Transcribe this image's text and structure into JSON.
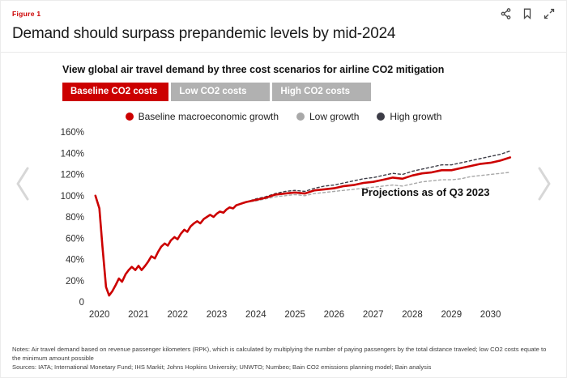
{
  "header": {
    "figure_label": "Figure 1",
    "title": "Demand should surpass prepandemic levels by mid-2024"
  },
  "theme": {
    "accent": "#cc0000",
    "inactive_tab": "#b1b1b1",
    "low_line": "#a8a8a8",
    "high_line": "#3c3c46"
  },
  "tabs": [
    {
      "label": "Baseline CO2 costs",
      "active": true
    },
    {
      "label": "Low CO2 costs",
      "active": false
    },
    {
      "label": "High CO2 costs",
      "active": false
    }
  ],
  "chart_data": {
    "type": "line",
    "title": "View global air travel demand by three cost scenarios for airline CO2 mitigation",
    "annotation": {
      "x": 2026.7,
      "y": 100,
      "text": "Projections as of Q3 2023"
    },
    "x_range": [
      2019.8,
      2030.65
    ],
    "y_range": [
      0,
      160
    ],
    "x_tick_values": [
      2020,
      2021,
      2022,
      2023,
      2024,
      2025,
      2026,
      2027,
      2028,
      2029,
      2030
    ],
    "y_tick_values": [
      0,
      20,
      40,
      60,
      80,
      100,
      120,
      140,
      160
    ],
    "y_tick_labels": [
      "0",
      "20%",
      "40%",
      "60%",
      "80%",
      "100%",
      "120%",
      "140%",
      "160%"
    ],
    "legend": [
      {
        "label": "Baseline macroeconomic growth",
        "color": "#cc0000"
      },
      {
        "label": "Low growth",
        "color": "#a8a8a8"
      },
      {
        "label": "High growth",
        "color": "#3c3c46"
      }
    ],
    "series": [
      {
        "name": "Low growth",
        "color": "#a8a8a8",
        "width": 1.4,
        "dash": "3,3",
        "points": [
          [
            2023.75,
            94
          ],
          [
            2024.0,
            95
          ],
          [
            2024.25,
            97
          ],
          [
            2024.5,
            99
          ],
          [
            2024.75,
            100
          ],
          [
            2025.0,
            101
          ],
          [
            2025.25,
            100
          ],
          [
            2025.5,
            102
          ],
          [
            2025.75,
            103
          ],
          [
            2026.0,
            104
          ],
          [
            2026.25,
            105
          ],
          [
            2026.5,
            106
          ],
          [
            2026.75,
            107
          ],
          [
            2027.0,
            108
          ],
          [
            2027.25,
            109
          ],
          [
            2027.5,
            110
          ],
          [
            2027.75,
            109
          ],
          [
            2028.0,
            111
          ],
          [
            2028.25,
            113
          ],
          [
            2028.5,
            114
          ],
          [
            2028.75,
            115
          ],
          [
            2029.0,
            115
          ],
          [
            2029.25,
            116
          ],
          [
            2029.5,
            118
          ],
          [
            2029.75,
            119
          ],
          [
            2030.0,
            120
          ],
          [
            2030.25,
            121
          ],
          [
            2030.5,
            122
          ]
        ]
      },
      {
        "name": "High growth",
        "color": "#3c3c46",
        "width": 1.4,
        "dash": "3,3",
        "points": [
          [
            2023.75,
            94
          ],
          [
            2024.0,
            97
          ],
          [
            2024.25,
            99
          ],
          [
            2024.5,
            102
          ],
          [
            2024.75,
            104
          ],
          [
            2025.0,
            105
          ],
          [
            2025.25,
            104
          ],
          [
            2025.5,
            107
          ],
          [
            2025.75,
            109
          ],
          [
            2026.0,
            110
          ],
          [
            2026.25,
            112
          ],
          [
            2026.5,
            114
          ],
          [
            2026.75,
            116
          ],
          [
            2027.0,
            117
          ],
          [
            2027.25,
            119
          ],
          [
            2027.5,
            121
          ],
          [
            2027.75,
            120
          ],
          [
            2028.0,
            123
          ],
          [
            2028.25,
            125
          ],
          [
            2028.5,
            127
          ],
          [
            2028.75,
            129
          ],
          [
            2029.0,
            129
          ],
          [
            2029.25,
            131
          ],
          [
            2029.5,
            133
          ],
          [
            2029.75,
            135
          ],
          [
            2030.0,
            137
          ],
          [
            2030.25,
            139
          ],
          [
            2030.5,
            142
          ]
        ]
      },
      {
        "name": "Baseline macroeconomic growth",
        "color": "#cc0000",
        "width": 2.6,
        "dash": "",
        "points": [
          [
            2019.9,
            100
          ],
          [
            2020.0,
            88
          ],
          [
            2020.08,
            52
          ],
          [
            2020.17,
            14
          ],
          [
            2020.25,
            6
          ],
          [
            2020.33,
            10
          ],
          [
            2020.42,
            16
          ],
          [
            2020.5,
            22
          ],
          [
            2020.58,
            19
          ],
          [
            2020.67,
            26
          ],
          [
            2020.75,
            30
          ],
          [
            2020.83,
            33
          ],
          [
            2020.92,
            30
          ],
          [
            2021.0,
            34
          ],
          [
            2021.08,
            30
          ],
          [
            2021.17,
            34
          ],
          [
            2021.25,
            38
          ],
          [
            2021.33,
            43
          ],
          [
            2021.42,
            41
          ],
          [
            2021.5,
            47
          ],
          [
            2021.58,
            52
          ],
          [
            2021.67,
            55
          ],
          [
            2021.75,
            53
          ],
          [
            2021.83,
            58
          ],
          [
            2021.92,
            61
          ],
          [
            2022.0,
            59
          ],
          [
            2022.08,
            64
          ],
          [
            2022.17,
            68
          ],
          [
            2022.25,
            66
          ],
          [
            2022.33,
            71
          ],
          [
            2022.42,
            74
          ],
          [
            2022.5,
            76
          ],
          [
            2022.58,
            74
          ],
          [
            2022.67,
            78
          ],
          [
            2022.75,
            80
          ],
          [
            2022.83,
            82
          ],
          [
            2022.92,
            80
          ],
          [
            2023.0,
            83
          ],
          [
            2023.08,
            85
          ],
          [
            2023.17,
            84
          ],
          [
            2023.25,
            87
          ],
          [
            2023.33,
            89
          ],
          [
            2023.42,
            88
          ],
          [
            2023.5,
            91
          ],
          [
            2023.58,
            92
          ],
          [
            2023.67,
            93
          ],
          [
            2023.75,
            94
          ],
          [
            2024.0,
            96
          ],
          [
            2024.25,
            98
          ],
          [
            2024.5,
            101
          ],
          [
            2024.75,
            102
          ],
          [
            2025.0,
            103
          ],
          [
            2025.25,
            102
          ],
          [
            2025.5,
            105
          ],
          [
            2025.75,
            106
          ],
          [
            2026.0,
            107
          ],
          [
            2026.25,
            109
          ],
          [
            2026.5,
            110
          ],
          [
            2026.75,
            112
          ],
          [
            2027.0,
            113
          ],
          [
            2027.25,
            115
          ],
          [
            2027.5,
            117
          ],
          [
            2027.75,
            116
          ],
          [
            2028.0,
            119
          ],
          [
            2028.25,
            121
          ],
          [
            2028.5,
            122
          ],
          [
            2028.75,
            124
          ],
          [
            2029.0,
            124
          ],
          [
            2029.25,
            126
          ],
          [
            2029.5,
            128
          ],
          [
            2029.75,
            130
          ],
          [
            2030.0,
            131
          ],
          [
            2030.25,
            133
          ],
          [
            2030.5,
            136
          ]
        ]
      }
    ]
  },
  "footer": {
    "notes": "Notes: Air travel demand based on revenue passenger kilometers (RPK), which is calculated by multiplying the number of paying passengers by the total distance traveled; low CO2 costs equate to the minimum amount possible",
    "sources": "Sources: IATA; International Monetary Fund; IHS Markit; Johns Hopkins University; UNWTO; Numbeo; Bain CO2 emissions planning model; Bain analysis"
  }
}
